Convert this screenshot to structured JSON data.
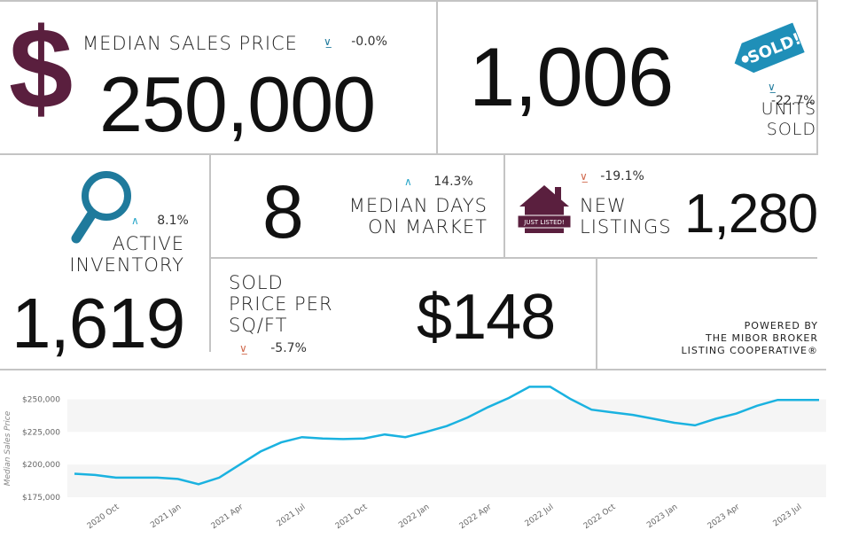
{
  "median_sales_price": {
    "label": "MEDIAN SALES PRICE",
    "value": "250,000",
    "change": "-0.0%",
    "symbol": "$",
    "symbol_color": "#5a1f3e"
  },
  "units_sold": {
    "value": "1,006",
    "label_line1": "UNITS",
    "label_line2": "SOLD",
    "change": "-22.7%",
    "badge_text": "SOLD!",
    "badge_color": "#1f8fb8"
  },
  "active_inventory": {
    "label_line1": "ACTIVE",
    "label_line2": "INVENTORY",
    "value": "1,619",
    "change": "8.1%",
    "icon_color": "#1f7a9c"
  },
  "median_days": {
    "value": "8",
    "label_line1": "MEDIAN DAYS",
    "label_line2": "ON MARKET",
    "change": "14.3%"
  },
  "new_listings": {
    "label_line1": "NEW",
    "label_line2": "LISTINGS",
    "value": "1,280",
    "change": "-19.1%",
    "house_text": "JUST LISTED!",
    "house_color": "#5a1f3e"
  },
  "price_per_sqft": {
    "label_line1": "SOLD",
    "label_line2": "PRICE PER",
    "label_line3": "SQ/FT",
    "value": "$148",
    "change": "-5.7%"
  },
  "powered_by": {
    "line1": "POWERED BY",
    "line2": "THE MIBOR BROKER",
    "line3": "LISTING COOPERATIVE®"
  },
  "chart_data": {
    "type": "line",
    "ylabel": "Median Sales Price",
    "ylim": [
      175000,
      262500
    ],
    "yticks": [
      175000,
      200000,
      225000,
      250000
    ],
    "ytick_labels": [
      "$175,000",
      "$200,000",
      "$225,000",
      "$250,000"
    ],
    "xtick_labels": [
      "2020 Oct",
      "2021 Jan",
      "2021 Apr",
      "2021 Jul",
      "2021 Oct",
      "2022 Jan",
      "2022 Apr",
      "2022 Jul",
      "2022 Oct",
      "2023 Jan",
      "2023 Apr",
      "2023 Jul"
    ],
    "xtick_index": [
      2,
      5,
      8,
      11,
      14,
      17,
      20,
      23,
      26,
      29,
      32,
      35
    ],
    "x_labels": [
      "2020 Aug",
      "2020 Sep",
      "2020 Oct",
      "2020 Nov",
      "2020 Dec",
      "2021 Jan",
      "2021 Feb",
      "2021 Mar",
      "2021 Apr",
      "2021 May",
      "2021 Jun",
      "2021 Jul",
      "2021 Aug",
      "2021 Sep",
      "2021 Oct",
      "2021 Nov",
      "2021 Dec",
      "2022 Jan",
      "2022 Feb",
      "2022 Mar",
      "2022 Apr",
      "2022 May",
      "2022 Jun",
      "2022 Jul",
      "2022 Aug",
      "2022 Sep",
      "2022 Oct",
      "2022 Nov",
      "2022 Dec",
      "2023 Jan",
      "2023 Feb",
      "2023 Mar",
      "2023 Apr",
      "2023 May",
      "2023 Jun",
      "2023 Jul",
      "2023 Aug"
    ],
    "values": [
      193000,
      192000,
      190000,
      190000,
      190000,
      189000,
      185000,
      190000,
      200000,
      210000,
      217000,
      221000,
      220000,
      219500,
      220000,
      223000,
      221000,
      225000,
      229500,
      236000,
      244000,
      251000,
      259500,
      259500,
      250000,
      242000,
      240000,
      238000,
      235000,
      232000,
      230000,
      235000,
      239000,
      245000,
      249500,
      249500,
      249500
    ],
    "line_color": "#1ab2e0",
    "grid": true
  }
}
